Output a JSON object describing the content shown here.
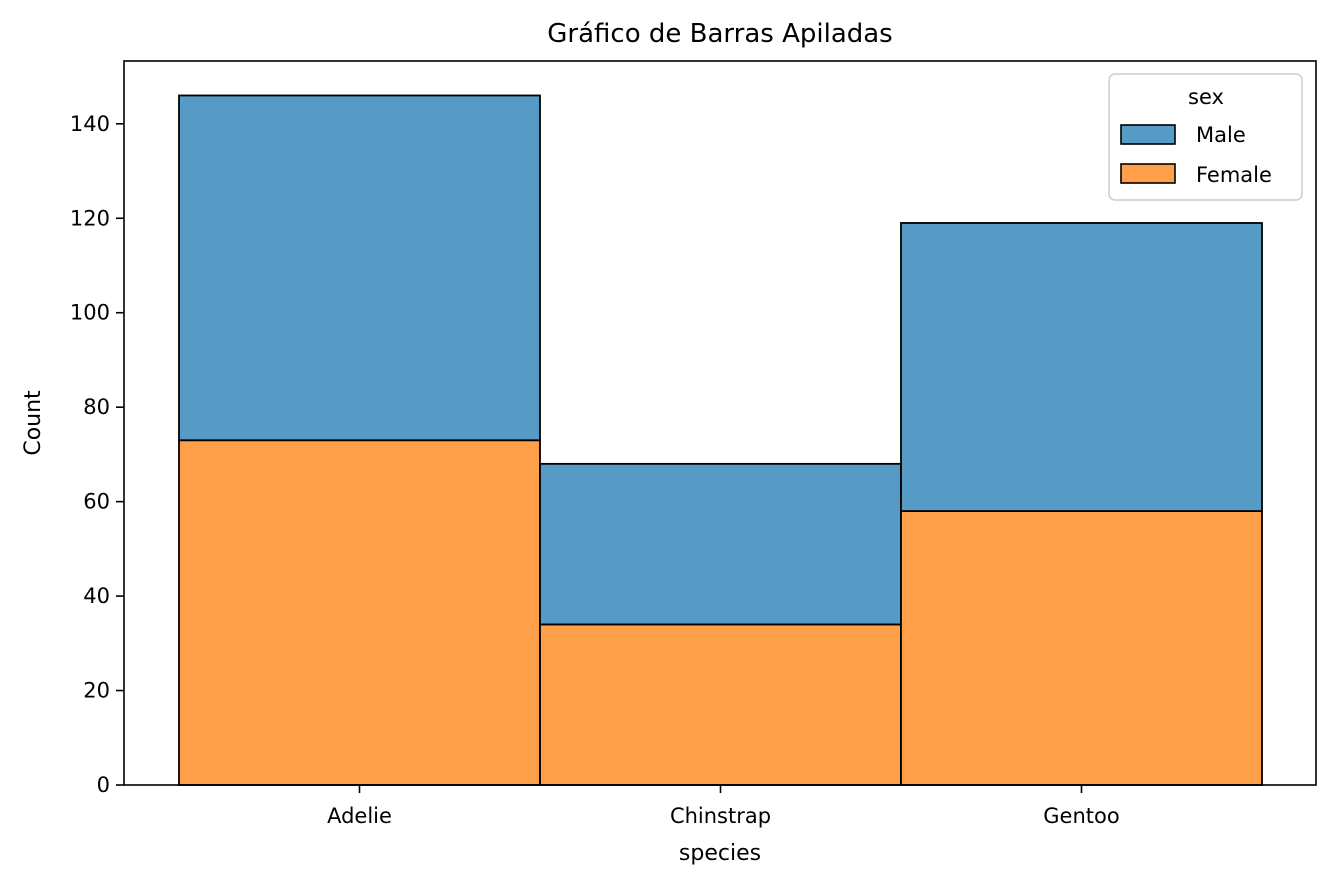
{
  "chart_data": {
    "type": "bar",
    "stacked": true,
    "title": "Gráfico de Barras Apiladas",
    "xlabel": "species",
    "ylabel": "Count",
    "categories": [
      "Adelie",
      "Chinstrap",
      "Gentoo"
    ],
    "series": [
      {
        "name": "Female",
        "values": [
          73,
          34,
          58
        ],
        "color": "#ff9f4a"
      },
      {
        "name": "Male",
        "values": [
          73,
          34,
          61
        ],
        "color": "#569bc6"
      }
    ],
    "ylim": [
      0,
      153.3
    ],
    "yticks": [
      0,
      20,
      40,
      60,
      80,
      100,
      120,
      140
    ],
    "legend": {
      "title": "sex",
      "placement": "top-right",
      "entries": [
        "Male",
        "Female"
      ]
    },
    "grid": false
  }
}
